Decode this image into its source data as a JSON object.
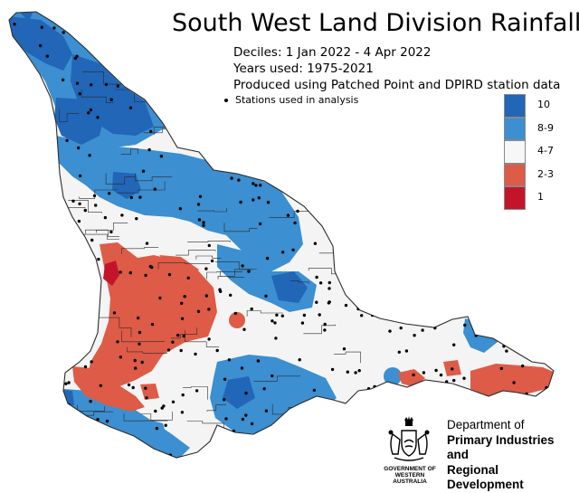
{
  "map": {
    "title": "South West Land Division Rainfall",
    "period_line": "Deciles:  1 Jan 2022 -  4 Apr 2022",
    "years_line": "Years used: 1975-2021",
    "source_line": "Produced using Patched Point and DPIRD station data",
    "stations_note": "Stations used in analysis",
    "land_default_color": "#f4f4f4",
    "boundary_color": "#2b2b2b"
  },
  "legend": {
    "items": [
      {
        "label": "10",
        "color": "#2166b7"
      },
      {
        "label": "8-9",
        "color": "#3c8fd0"
      },
      {
        "label": "4-7",
        "color": "#f7f7f7"
      },
      {
        "label": "2-3",
        "color": "#de5b47"
      },
      {
        "label": "1",
        "color": "#c4142a"
      }
    ]
  },
  "department": {
    "line1": "Department of",
    "line2": "Primary Industries and",
    "line3": "Regional Development",
    "gov_line1": "GOVERNMENT OF",
    "gov_line2": "WESTERN AUSTRALIA",
    "logo_icon": "wa-coat-of-arms-icon"
  }
}
